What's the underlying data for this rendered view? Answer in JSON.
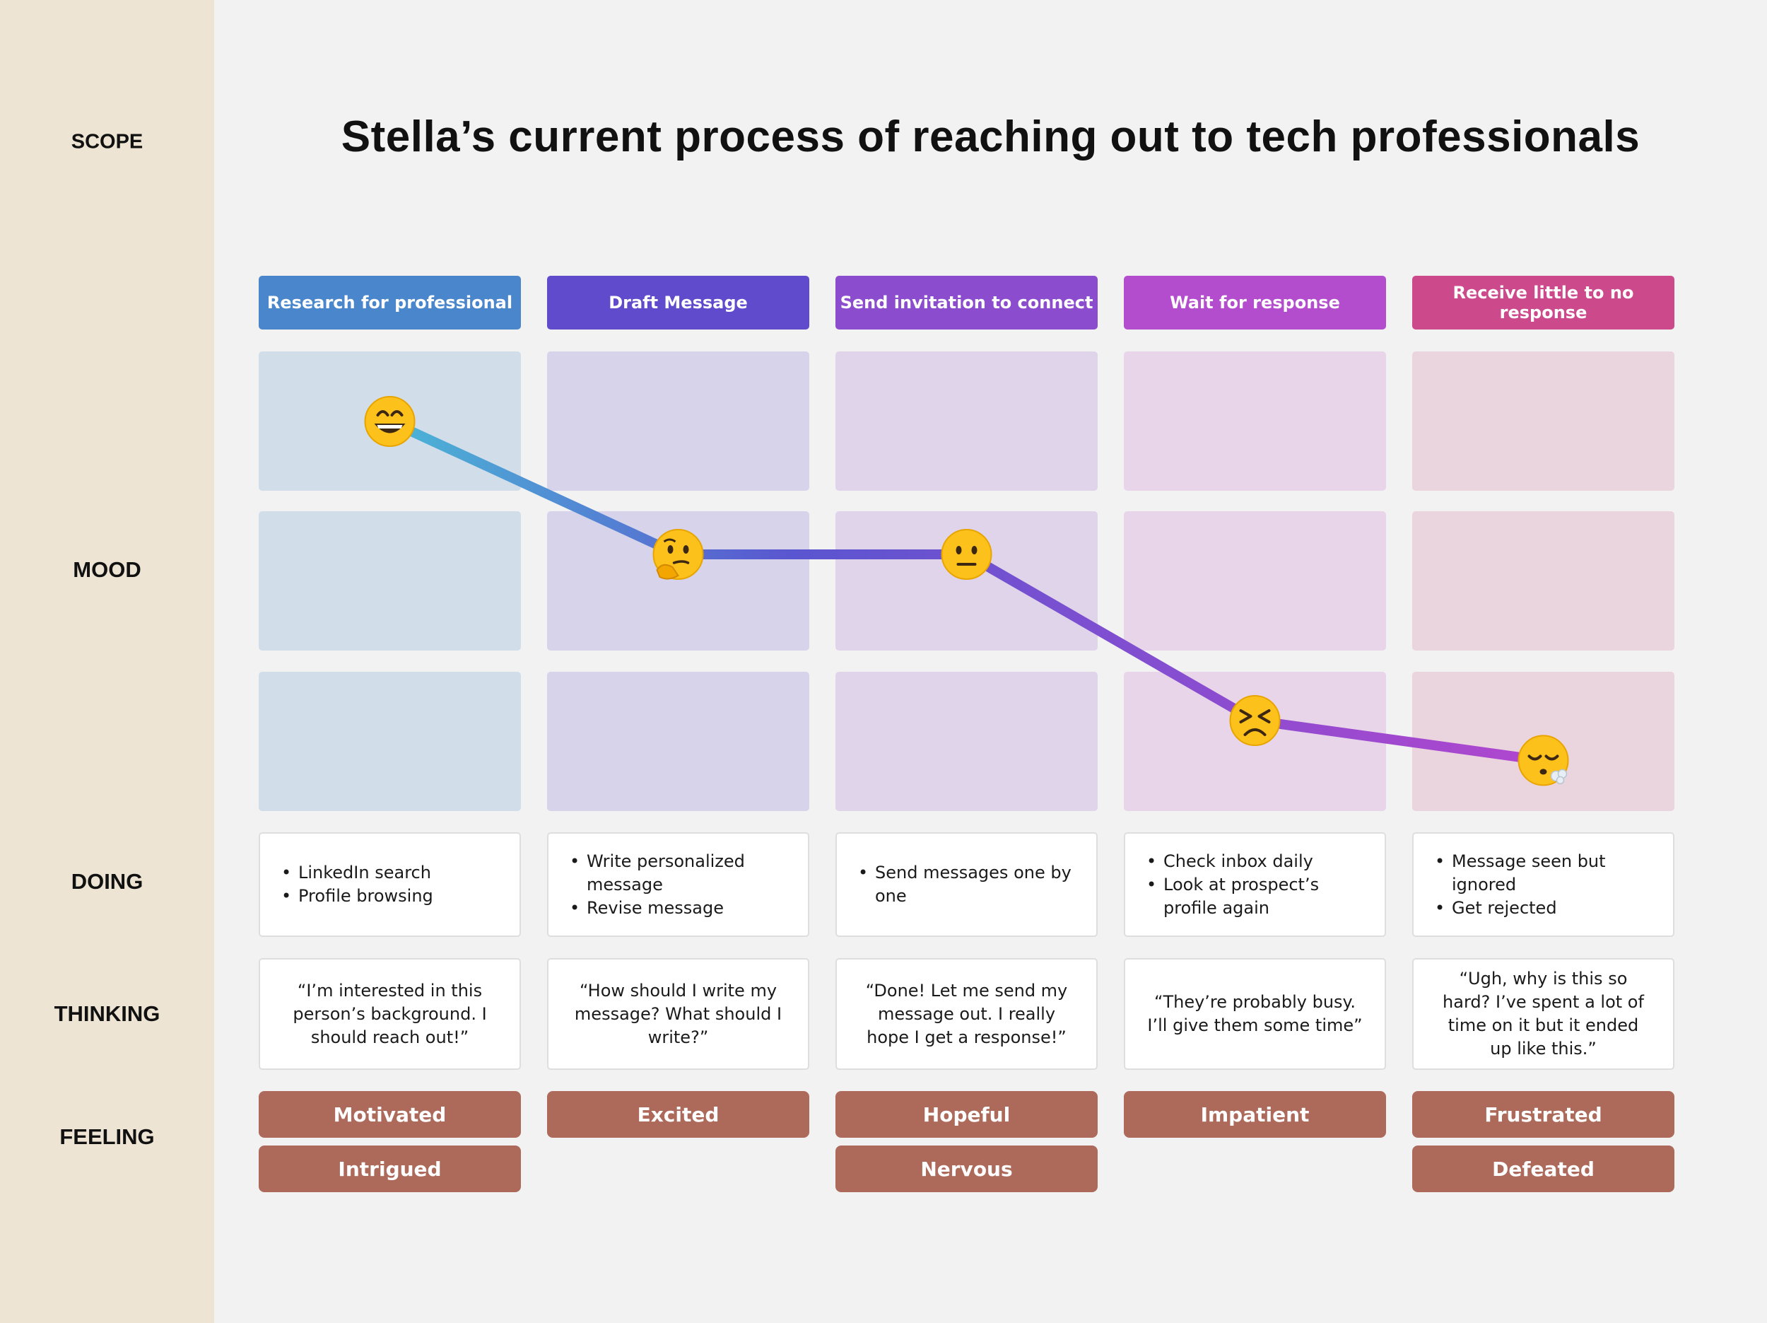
{
  "title": "Stella’s current process of reaching out to tech professionals",
  "row_labels": {
    "scope": "SCOPE",
    "mood": "MOOD",
    "doing": "DOING",
    "thinking": "THINKING",
    "feeling": "FEELING"
  },
  "colors": {
    "sidebar": "#ede4d3",
    "feeling_pill": "#ad6a5b",
    "line_start": "#4bb6d6",
    "line_mid": "#5a55d0",
    "line_end": "#b146cf"
  },
  "stages": [
    {
      "title": "Research for professional",
      "color": "#4a86cc",
      "cell_color": "#d1dde9",
      "mood_level": 0,
      "mood": "grinning-face",
      "doing": [
        "LinkedIn search",
        "Profile browsing"
      ],
      "thinking": "“I’m interested in this person’s background. I should reach out!”",
      "feelings": [
        "Motivated",
        "Intrigued"
      ]
    },
    {
      "title": "Draft Message",
      "color": "#5f4bcc",
      "cell_color": "#d6d3ea",
      "mood_level": 1,
      "mood": "thinking-face",
      "doing": [
        "Write personalized message",
        "Revise message"
      ],
      "thinking": "“How should I write my message? What should I write?”",
      "feelings": [
        "Excited"
      ]
    },
    {
      "title": "Send invitation to connect",
      "color": "#8b4ccd",
      "cell_color": "#e0d4ea",
      "mood_level": 1,
      "mood": "neutral-face",
      "doing": [
        "Send messages one by one"
      ],
      "thinking": "“Done! Let me send my message out. I really hope I get a response!”",
      "feelings": [
        "Hopeful",
        "Nervous"
      ]
    },
    {
      "title": "Wait for response",
      "color": "#b34dcd",
      "cell_color": "#e8d5ea",
      "mood_level": 2.25,
      "mood": "persevering-face",
      "doing": [
        "Check inbox daily",
        "Look at prospect’s profile again"
      ],
      "thinking": "“They’re probably busy. I’ll give them some time”",
      "feelings": [
        "Impatient"
      ]
    },
    {
      "title": "Receive little to no response",
      "color": "#cc4a8c",
      "cell_color": "#ead4de",
      "mood_level": 2.55,
      "mood": "face-exhaling",
      "doing": [
        "Message seen but ignored",
        "Get rejected"
      ],
      "thinking": "“Ugh, why is this so hard? I’ve spent a lot of time on it but it ended up like this.”",
      "feelings": [
        "Frustrated",
        "Defeated"
      ]
    }
  ]
}
